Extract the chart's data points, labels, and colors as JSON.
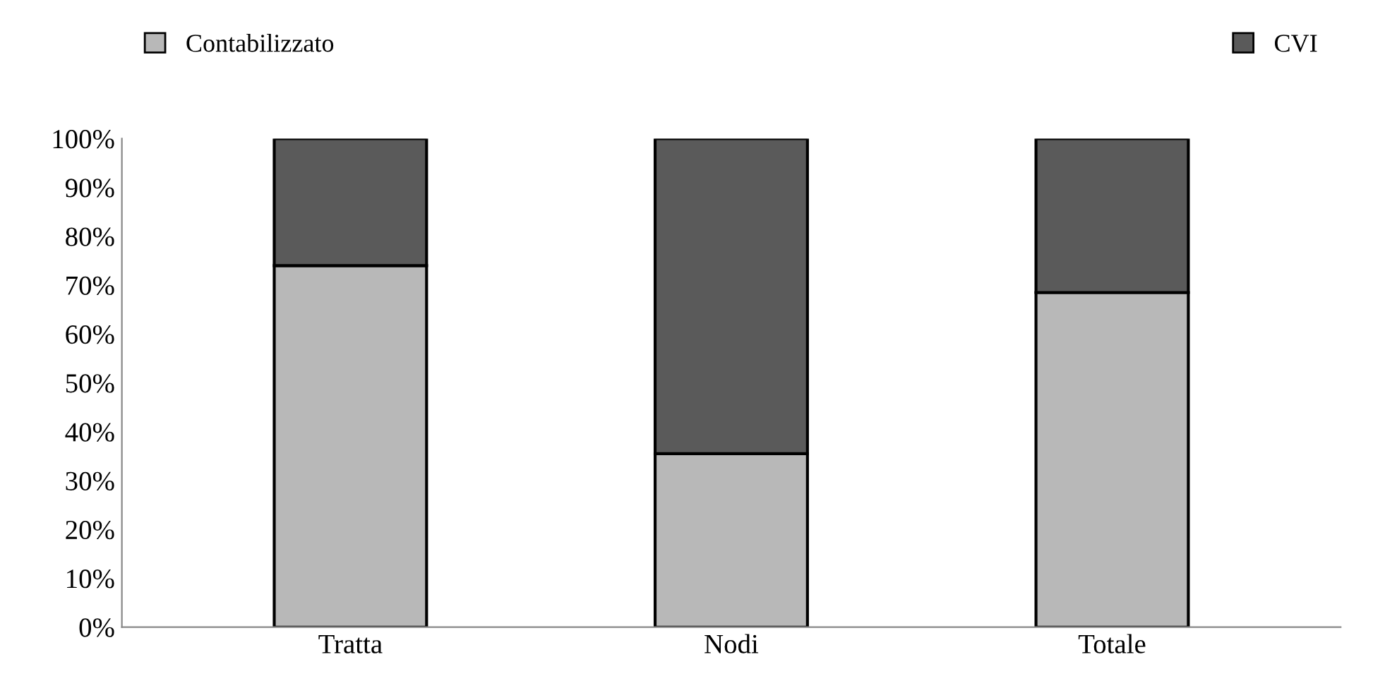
{
  "chart_data": {
    "type": "bar",
    "stacked": true,
    "categories": [
      "Tratta",
      "Nodi",
      "Totale"
    ],
    "series": [
      {
        "name": "Contabilizzato",
        "color": "#b8b8b8",
        "values": [
          74,
          35.5,
          68.5
        ]
      },
      {
        "name": "CVI",
        "color": "#5a5a5a",
        "values": [
          26,
          64.5,
          31.5
        ]
      }
    ],
    "ylim": [
      0,
      100
    ],
    "yticks": [
      {
        "value": 0,
        "label": "0%"
      },
      {
        "value": 10,
        "label": "10%"
      },
      {
        "value": 20,
        "label": "20%"
      },
      {
        "value": 30,
        "label": "30%"
      },
      {
        "value": 40,
        "label": "40%"
      },
      {
        "value": 50,
        "label": "50%"
      },
      {
        "value": 60,
        "label": "60%"
      },
      {
        "value": 70,
        "label": "70%"
      },
      {
        "value": 80,
        "label": "80%"
      },
      {
        "value": 90,
        "label": "90%"
      },
      {
        "value": 100,
        "label": "100%"
      }
    ],
    "grid": false,
    "legend": "top"
  }
}
